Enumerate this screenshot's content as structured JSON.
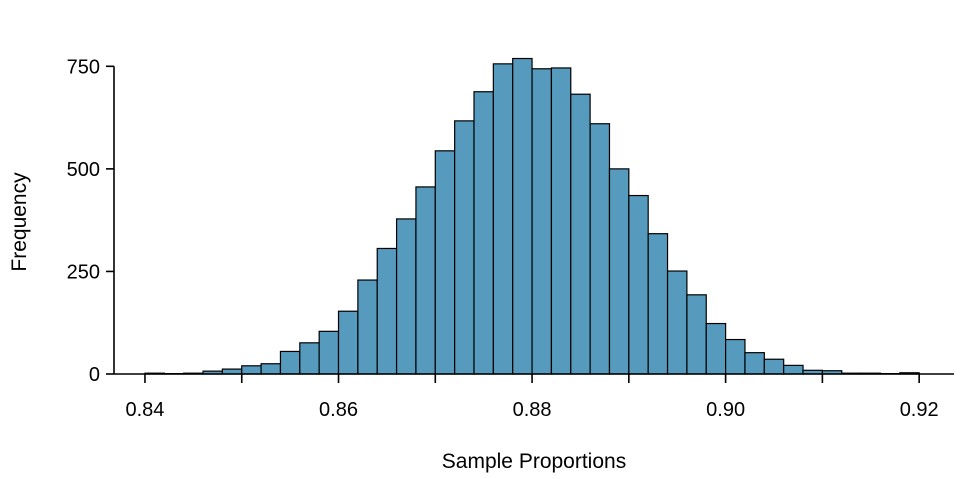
{
  "chart_data": {
    "type": "bar",
    "xlabel": "Sample Proportions",
    "ylabel": "Frequency",
    "bar_color": "#569bbd",
    "bin_width": 0.002,
    "xlim": [
      0.8368,
      0.9236
    ],
    "ylim": [
      0,
      780
    ],
    "x_ticks": [
      0.84,
      0.85,
      0.86,
      0.87,
      0.88,
      0.89,
      0.9,
      0.91,
      0.92
    ],
    "x_tick_labels": [
      {
        "value": 0.84,
        "label": "0.84"
      },
      {
        "value": 0.86,
        "label": "0.86"
      },
      {
        "value": 0.88,
        "label": "0.88"
      },
      {
        "value": 0.9,
        "label": "0.90"
      },
      {
        "value": 0.92,
        "label": "0.92"
      }
    ],
    "y_ticks": [
      {
        "value": 0,
        "label": "0"
      },
      {
        "value": 250,
        "label": "250"
      },
      {
        "value": 500,
        "label": "500"
      },
      {
        "value": 750,
        "label": "750"
      }
    ],
    "bins": [
      {
        "start": 0.84,
        "count": 2
      },
      {
        "start": 0.842,
        "count": 1
      },
      {
        "start": 0.844,
        "count": 2
      },
      {
        "start": 0.846,
        "count": 7
      },
      {
        "start": 0.848,
        "count": 12
      },
      {
        "start": 0.85,
        "count": 20
      },
      {
        "start": 0.852,
        "count": 25
      },
      {
        "start": 0.854,
        "count": 55
      },
      {
        "start": 0.856,
        "count": 76
      },
      {
        "start": 0.858,
        "count": 104
      },
      {
        "start": 0.86,
        "count": 153
      },
      {
        "start": 0.862,
        "count": 229
      },
      {
        "start": 0.864,
        "count": 306
      },
      {
        "start": 0.866,
        "count": 378
      },
      {
        "start": 0.868,
        "count": 456
      },
      {
        "start": 0.87,
        "count": 544
      },
      {
        "start": 0.872,
        "count": 617
      },
      {
        "start": 0.874,
        "count": 688
      },
      {
        "start": 0.876,
        "count": 756
      },
      {
        "start": 0.878,
        "count": 769
      },
      {
        "start": 0.88,
        "count": 744
      },
      {
        "start": 0.882,
        "count": 746
      },
      {
        "start": 0.884,
        "count": 682
      },
      {
        "start": 0.886,
        "count": 610
      },
      {
        "start": 0.888,
        "count": 500
      },
      {
        "start": 0.89,
        "count": 435
      },
      {
        "start": 0.892,
        "count": 342
      },
      {
        "start": 0.894,
        "count": 251
      },
      {
        "start": 0.896,
        "count": 193
      },
      {
        "start": 0.898,
        "count": 123
      },
      {
        "start": 0.9,
        "count": 84
      },
      {
        "start": 0.902,
        "count": 52
      },
      {
        "start": 0.904,
        "count": 36
      },
      {
        "start": 0.906,
        "count": 21
      },
      {
        "start": 0.908,
        "count": 9
      },
      {
        "start": 0.91,
        "count": 8
      },
      {
        "start": 0.912,
        "count": 2
      },
      {
        "start": 0.914,
        "count": 2
      },
      {
        "start": 0.916,
        "count": 1
      },
      {
        "start": 0.918,
        "count": 3
      }
    ]
  }
}
